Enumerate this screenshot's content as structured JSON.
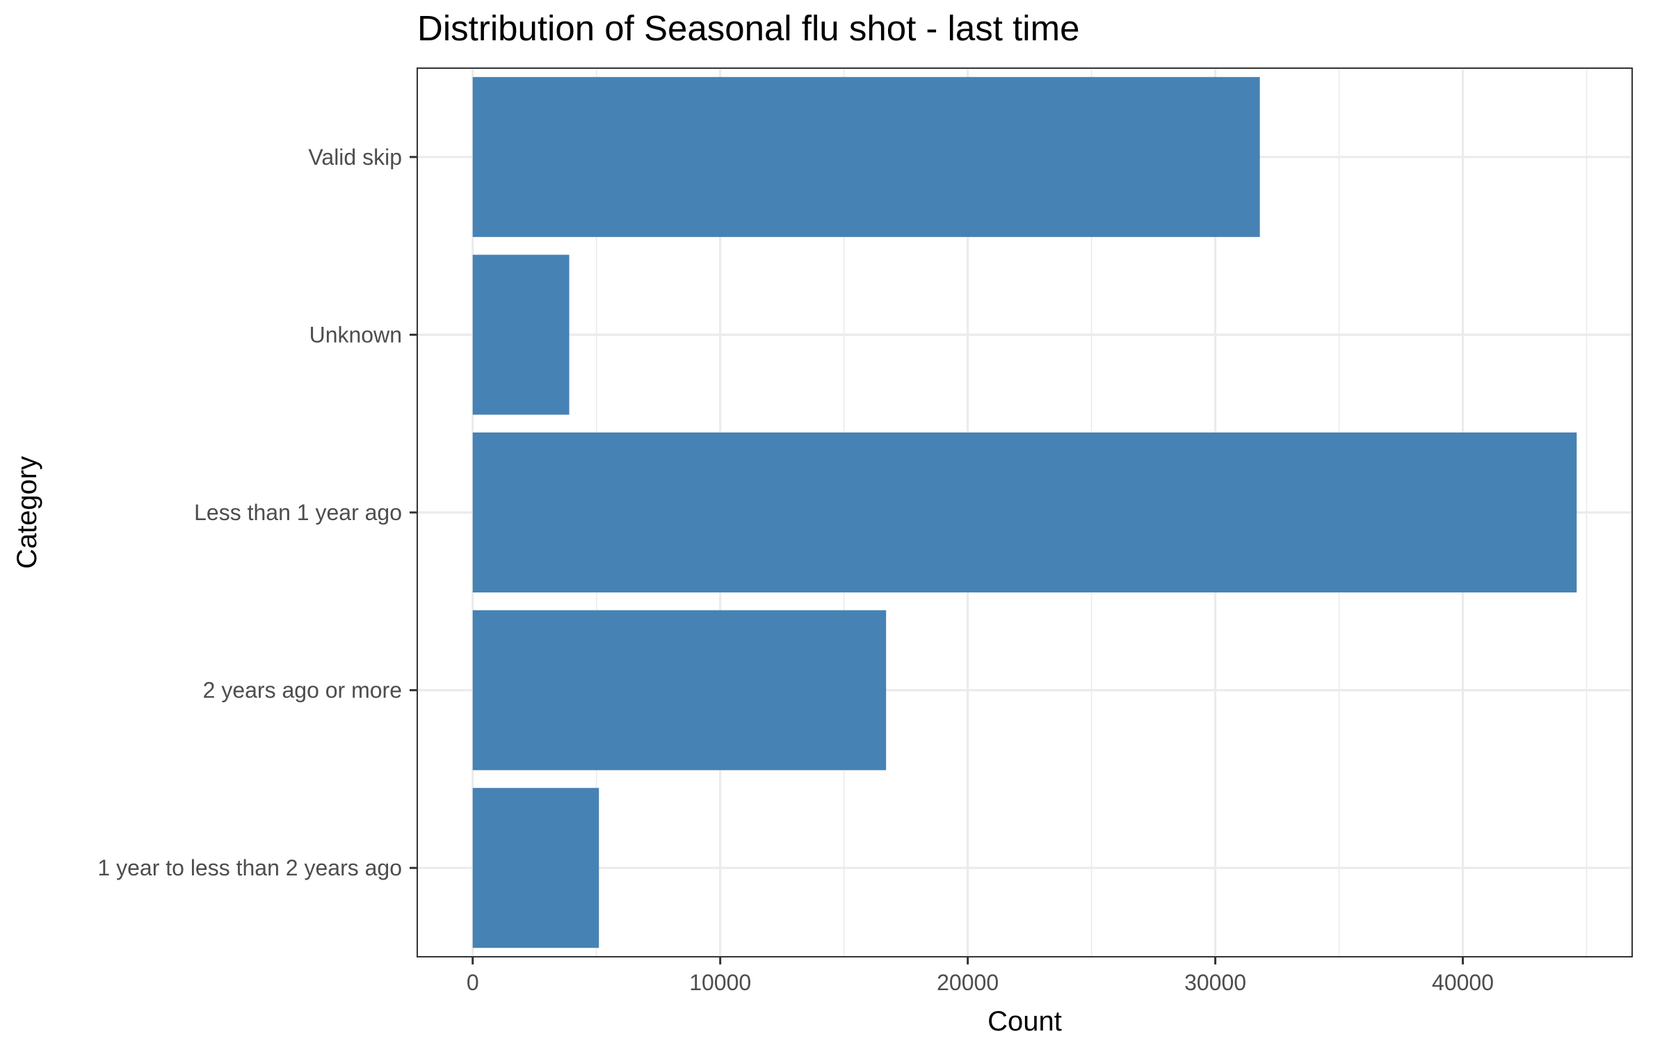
{
  "chart_data": {
    "type": "bar",
    "orientation": "horizontal",
    "title": "Distribution of Seasonal flu shot - last time",
    "xlabel": "Count",
    "ylabel": "Category",
    "categories": [
      "1 year to less than 2 years ago",
      "2 years ago or more",
      "Less than 1 year ago",
      "Unknown",
      "Valid skip"
    ],
    "values": [
      5100,
      16700,
      44600,
      3900,
      31800
    ],
    "xlim": [
      -2240,
      46840
    ],
    "x_ticks": [
      0,
      10000,
      20000,
      30000,
      40000
    ],
    "x_tick_labels": [
      "0",
      "10000",
      "20000",
      "30000",
      "40000"
    ],
    "grid": true,
    "legend": "none",
    "colors": {
      "bar": "#4682b4",
      "grid": "#ebebeb",
      "panel_border": "#333333",
      "tick_text": "#4d4d4d",
      "tick_mark": "#333333",
      "text": "#000000"
    }
  }
}
